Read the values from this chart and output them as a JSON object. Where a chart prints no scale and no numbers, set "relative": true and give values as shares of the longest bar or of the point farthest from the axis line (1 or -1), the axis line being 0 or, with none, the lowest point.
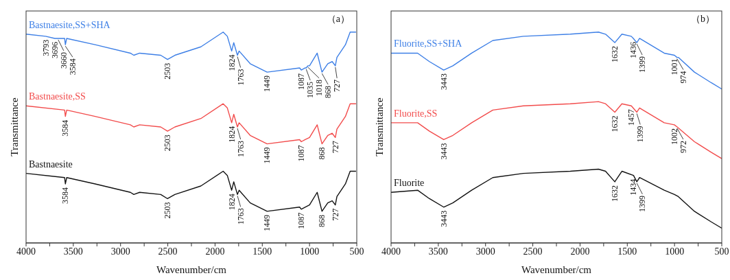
{
  "chart_data": [
    {
      "type": "line",
      "title": "（a）",
      "xlabel": "Wavenumber/cm",
      "ylabel": "Transmittance",
      "relative": true,
      "tick_labels": "x",
      "xlim": [
        4000,
        500
      ],
      "xticks": [
        4000,
        {
          "value": 3750,
          "label": null
        },
        3500,
        {
          "value": 3250,
          "label": null
        },
        3000,
        {
          "value": 2750,
          "label": null
        },
        2500,
        {
          "value": 2250,
          "label": null
        },
        2000,
        {
          "value": 1750,
          "label": null
        },
        1500,
        {
          "value": 1250,
          "label": null
        },
        1000,
        {
          "value": 750,
          "label": null
        },
        500
      ],
      "series": [
        {
          "name": "Bastnaesite,SS+SHA",
          "color": "#3d7fe6",
          "x": [
            4000,
            3793,
            3696,
            3660,
            3592,
            3584,
            3570,
            3269,
            2896,
            2860,
            2798,
            2575,
            2503,
            2425,
            2150,
            1914,
            1870,
            1824,
            1802,
            1763,
            1745,
            1628,
            1449,
            1105,
            1087,
            1046,
            1035,
            1018,
            1000,
            919,
            868,
            807,
            760,
            727,
            710,
            620,
            570,
            508
          ],
          "values": [
            0.99,
            0.98,
            0.97,
            0.97,
            0.97,
            0.94,
            0.97,
            0.94,
            0.9,
            0.89,
            0.9,
            0.89,
            0.87,
            0.89,
            0.93,
            1.0,
            0.98,
            0.91,
            0.95,
            0.89,
            0.91,
            0.85,
            0.81,
            0.83,
            0.82,
            0.83,
            0.83,
            0.84,
            0.84,
            0.9,
            0.81,
            0.85,
            0.86,
            0.84,
            0.88,
            0.94,
            1.0,
            1.0
          ]
        },
        {
          "name": "Bastnaesite,SS",
          "color": "#f24b4b",
          "x": [
            4000,
            3592,
            3584,
            3570,
            3269,
            2896,
            2860,
            2798,
            2575,
            2503,
            2425,
            2150,
            1914,
            1870,
            1824,
            1802,
            1763,
            1745,
            1628,
            1449,
            1105,
            1087,
            1046,
            1000,
            919,
            868,
            807,
            760,
            727,
            710,
            620,
            570,
            508
          ],
          "values": [
            0.65,
            0.63,
            0.6,
            0.63,
            0.6,
            0.56,
            0.55,
            0.56,
            0.55,
            0.53,
            0.55,
            0.59,
            0.66,
            0.64,
            0.57,
            0.61,
            0.55,
            0.57,
            0.51,
            0.47,
            0.49,
            0.48,
            0.49,
            0.5,
            0.56,
            0.47,
            0.51,
            0.52,
            0.5,
            0.54,
            0.6,
            0.66,
            0.66
          ]
        },
        {
          "name": "Bastnaesite",
          "color": "#111111",
          "x": [
            4000,
            3592,
            3584,
            3570,
            3269,
            2896,
            2860,
            2798,
            2575,
            2503,
            2425,
            2150,
            1914,
            1870,
            1824,
            1802,
            1763,
            1745,
            1628,
            1449,
            1105,
            1087,
            1046,
            1000,
            919,
            868,
            807,
            760,
            727,
            710,
            620,
            570,
            508
          ],
          "values": [
            0.33,
            0.31,
            0.28,
            0.31,
            0.28,
            0.24,
            0.23,
            0.24,
            0.23,
            0.21,
            0.23,
            0.27,
            0.34,
            0.32,
            0.25,
            0.29,
            0.23,
            0.25,
            0.19,
            0.15,
            0.17,
            0.16,
            0.17,
            0.18,
            0.24,
            0.15,
            0.19,
            0.2,
            0.18,
            0.22,
            0.28,
            0.34,
            0.34
          ]
        }
      ],
      "annotations": [
        {
          "text": "3793",
          "x": 3793,
          "y": 0.98
        },
        {
          "text": "3696",
          "x": 3696,
          "y": 0.97
        },
        {
          "text": "3660",
          "x": 3660,
          "y": 0.97
        },
        {
          "text": "3584",
          "x": 3584,
          "y": 0.94
        },
        {
          "text": "2503",
          "x": 2503,
          "y": 0.87
        },
        {
          "text": "1824",
          "x": 1824,
          "y": 0.91
        },
        {
          "text": "1763",
          "x": 1763,
          "y": 0.89
        },
        {
          "text": "1449",
          "x": 1449,
          "y": 0.81
        },
        {
          "text": "1087",
          "x": 1087,
          "y": 0.82
        },
        {
          "text": "1035",
          "x": 1035,
          "y": 0.83
        },
        {
          "text": "1018",
          "x": 1018,
          "y": 0.84
        },
        {
          "text": "868",
          "x": 868,
          "y": 0.81
        },
        {
          "text": "727",
          "x": 727,
          "y": 0.84
        },
        {
          "text": "3584",
          "x": 3584,
          "y": 0.6
        },
        {
          "text": "2503",
          "x": 2503,
          "y": 0.53
        },
        {
          "text": "1824",
          "x": 1824,
          "y": 0.57
        },
        {
          "text": "1763",
          "x": 1763,
          "y": 0.55
        },
        {
          "text": "1449",
          "x": 1449,
          "y": 0.47
        },
        {
          "text": "1087",
          "x": 1087,
          "y": 0.48
        },
        {
          "text": "868",
          "x": 868,
          "y": 0.47
        },
        {
          "text": "727",
          "x": 727,
          "y": 0.5
        },
        {
          "text": "3584",
          "x": 3584,
          "y": 0.28
        },
        {
          "text": "2503",
          "x": 2503,
          "y": 0.21
        },
        {
          "text": "1824",
          "x": 1824,
          "y": 0.25
        },
        {
          "text": "1763",
          "x": 1763,
          "y": 0.23
        },
        {
          "text": "1449",
          "x": 1449,
          "y": 0.15
        },
        {
          "text": "1087",
          "x": 1087,
          "y": 0.16
        },
        {
          "text": "868",
          "x": 868,
          "y": 0.15
        },
        {
          "text": "727",
          "x": 727,
          "y": 0.18
        }
      ]
    },
    {
      "type": "line",
      "title": "（b）",
      "xlabel": "Wavenumber/cm",
      "ylabel": "Transmittance",
      "relative": true,
      "tick_labels": "x",
      "xlim": [
        4000,
        500
      ],
      "xticks": [
        4000,
        {
          "value": 3750,
          "label": null
        },
        3500,
        {
          "value": 3250,
          "label": null
        },
        3000,
        {
          "value": 2750,
          "label": null
        },
        2500,
        {
          "value": 2250,
          "label": null
        },
        2000,
        {
          "value": 1750,
          "label": null
        },
        1500,
        {
          "value": 1250,
          "label": null
        },
        1000,
        {
          "value": 750,
          "label": null
        },
        500
      ],
      "series": [
        {
          "name": "Fluorite,SS+SHA",
          "color": "#3d7fe6",
          "x": [
            4000,
            3719,
            3594,
            3443,
            3346,
            3147,
            2923,
            2600,
            2103,
            1805,
            1730,
            1632,
            1557,
            1458,
            1436,
            1399,
            1370,
            1109,
            1001,
            974,
            960,
            789,
            612,
            500
          ],
          "values": [
            0.9,
            0.9,
            0.86,
            0.82,
            0.84,
            0.9,
            0.96,
            0.98,
            0.99,
            1.0,
            0.99,
            0.95,
            0.99,
            0.98,
            0.97,
            0.95,
            0.97,
            0.9,
            0.89,
            0.88,
            0.88,
            0.81,
            0.76,
            0.73
          ]
        },
        {
          "name": "Fluorite,SS",
          "color": "#f24b4b",
          "x": [
            4000,
            3719,
            3594,
            3443,
            3346,
            3147,
            2923,
            2600,
            2103,
            1805,
            1730,
            1632,
            1557,
            1457,
            1399,
            1370,
            1109,
            1002,
            972,
            789,
            612,
            500
          ],
          "values": [
            0.57,
            0.57,
            0.53,
            0.49,
            0.51,
            0.57,
            0.63,
            0.65,
            0.66,
            0.67,
            0.66,
            0.62,
            0.66,
            0.65,
            0.62,
            0.64,
            0.57,
            0.56,
            0.55,
            0.48,
            0.43,
            0.4
          ]
        },
        {
          "name": "Fluorite",
          "color": "#111111",
          "x": [
            4000,
            3719,
            3594,
            3443,
            3346,
            3147,
            2923,
            2600,
            2103,
            1805,
            1730,
            1632,
            1557,
            1434,
            1399,
            1370,
            1109,
            1001,
            960,
            789,
            612,
            500
          ],
          "values": [
            0.24,
            0.25,
            0.21,
            0.17,
            0.19,
            0.25,
            0.31,
            0.33,
            0.34,
            0.35,
            0.34,
            0.29,
            0.34,
            0.32,
            0.29,
            0.31,
            0.25,
            0.23,
            0.22,
            0.15,
            0.1,
            0.07
          ]
        }
      ],
      "annotations": [
        {
          "text": "3443",
          "x": 3443,
          "y": 0.82
        },
        {
          "text": "1632",
          "x": 1632,
          "y": 0.95
        },
        {
          "text": "1436",
          "x": 1436,
          "y": 0.97
        },
        {
          "text": "1399",
          "x": 1399,
          "y": 0.95
        },
        {
          "text": "1001",
          "x": 1001,
          "y": 0.89
        },
        {
          "text": "974",
          "x": 974,
          "y": 0.88
        },
        {
          "text": "3443",
          "x": 3443,
          "y": 0.49
        },
        {
          "text": "1632",
          "x": 1632,
          "y": 0.62
        },
        {
          "text": "1457",
          "x": 1457,
          "y": 0.65
        },
        {
          "text": "1399",
          "x": 1399,
          "y": 0.62
        },
        {
          "text": "1002",
          "x": 1002,
          "y": 0.56
        },
        {
          "text": "972",
          "x": 972,
          "y": 0.55
        },
        {
          "text": "3443",
          "x": 3443,
          "y": 0.17
        },
        {
          "text": "1632",
          "x": 1632,
          "y": 0.29
        },
        {
          "text": "1434",
          "x": 1434,
          "y": 0.32
        },
        {
          "text": "1399",
          "x": 1399,
          "y": 0.29
        }
      ]
    }
  ]
}
